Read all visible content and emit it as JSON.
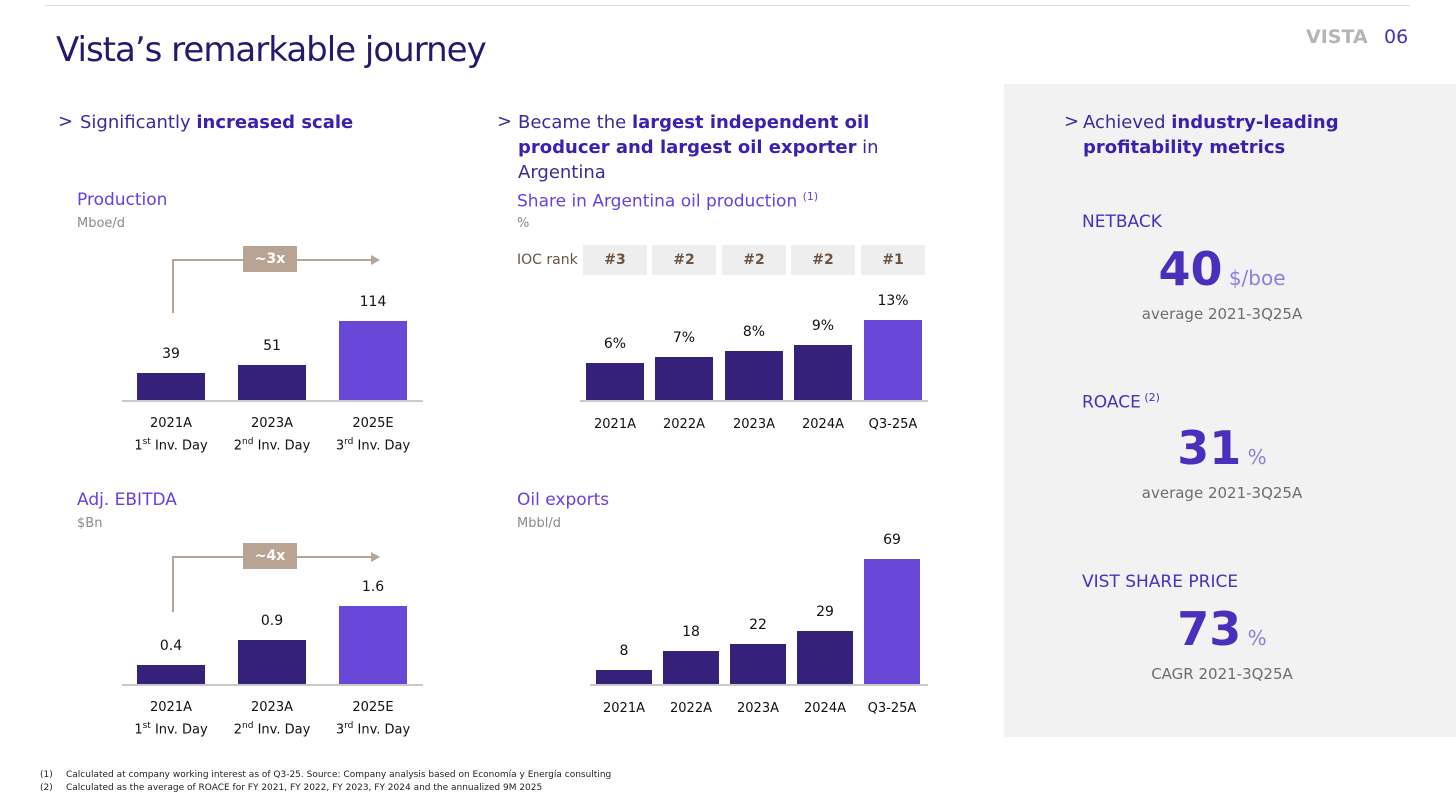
{
  "header": {
    "title": "Vista’s remarkable journey",
    "brand": "VISTA",
    "page_number": "06"
  },
  "sections": {
    "scale": {
      "prefix": "Significantly ",
      "bold": "increased scale"
    },
    "producer": {
      "prefix": "Became the ",
      "bold": "largest independent oil producer and largest oil exporter",
      "suffix": " in Argentina"
    },
    "profitability": {
      "prefix": "Achieved ",
      "bold": "industry-leading profitability metrics"
    }
  },
  "chart_data": [
    {
      "id": "production",
      "type": "bar",
      "title": "Production",
      "unit": "Mboe/d",
      "categories": [
        {
          "year": "2021A",
          "n": "1",
          "sup": "st",
          "rest": " Inv. Day"
        },
        {
          "year": "2023A",
          "n": "2",
          "sup": "nd",
          "rest": " Inv. Day"
        },
        {
          "year": "2025E",
          "n": "3",
          "sup": "rd",
          "rest": " Inv. Day"
        }
      ],
      "values": [
        39,
        51,
        114
      ],
      "labels": [
        "39",
        "51",
        "114"
      ],
      "highlight_last": true,
      "annotation": "~3x"
    },
    {
      "id": "ebitda",
      "type": "bar",
      "title": "Adj. EBITDA",
      "unit": "$Bn",
      "categories": [
        {
          "year": "2021A",
          "n": "1",
          "sup": "st",
          "rest": " Inv. Day"
        },
        {
          "year": "2023A",
          "n": "2",
          "sup": "nd",
          "rest": " Inv. Day"
        },
        {
          "year": "2025E",
          "n": "3",
          "sup": "rd",
          "rest": " Inv. Day"
        }
      ],
      "values": [
        0.4,
        0.9,
        1.6
      ],
      "labels": [
        "0.4",
        "0.9",
        "1.6"
      ],
      "highlight_last": true,
      "annotation": "~4x"
    },
    {
      "id": "share",
      "type": "bar",
      "title": "Share in Argentina oil production",
      "title_note": "(1)",
      "unit": "%",
      "categories": [
        "2021A",
        "2022A",
        "2023A",
        "2024A",
        "Q3-25A"
      ],
      "values": [
        6,
        7,
        8,
        9,
        13
      ],
      "labels": [
        "6%",
        "7%",
        "8%",
        "9%",
        "13%"
      ],
      "highlight_last": true,
      "rank_label": "IOC rank",
      "ranks": [
        "#3",
        "#2",
        "#2",
        "#2",
        "#1"
      ]
    },
    {
      "id": "exports",
      "type": "bar",
      "title": "Oil exports",
      "unit": "Mbbl/d",
      "categories": [
        "2021A",
        "2022A",
        "2023A",
        "2024A",
        "Q3-25A"
      ],
      "values": [
        8,
        18,
        22,
        29,
        69
      ],
      "labels": [
        "8",
        "18",
        "22",
        "29",
        "69"
      ],
      "highlight_last": true
    }
  ],
  "colors": {
    "bar": "#35207a",
    "bar_highlight": "#6a48d7",
    "annotation": "#b9a393"
  },
  "kpis": [
    {
      "label": "NETBACK",
      "note": "",
      "value": "40",
      "unit": "$/boe",
      "sub": "average 2021-3Q25A"
    },
    {
      "label": "ROACE",
      "note": "(2)",
      "value": "31",
      "unit": "%",
      "sub": "average 2021-3Q25A"
    },
    {
      "label": "VIST SHARE PRICE",
      "note": "",
      "value": "73",
      "unit": "%",
      "sub": "CAGR 2021-3Q25A"
    }
  ],
  "footnotes": [
    {
      "num": "(1)",
      "text": "Calculated at company working interest as of Q3-25. Source: Company analysis based on Economía y Energía consulting"
    },
    {
      "num": "(2)",
      "text": "Calculated as the average of ROACE for FY 2021, FY 2022, FY 2023, FY 2024 and the annualized 9M 2025"
    }
  ]
}
